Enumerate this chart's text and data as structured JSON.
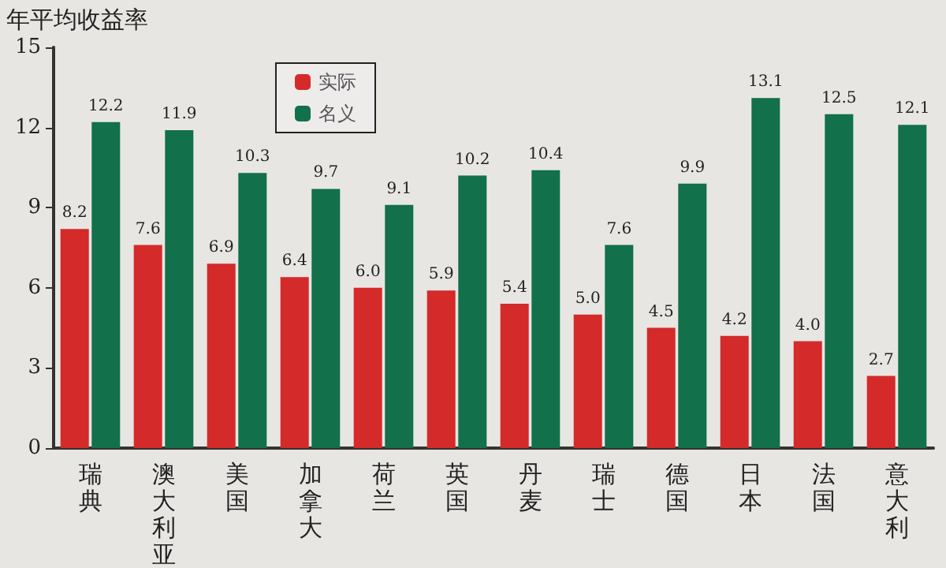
{
  "chart_data": {
    "type": "bar",
    "ylabel": "年平均收益率",
    "categories": [
      "瑞典",
      "澳大利亚",
      "美国",
      "加拿大",
      "荷兰",
      "英国",
      "丹麦",
      "瑞士",
      "德国",
      "日本",
      "法国",
      "意大利"
    ],
    "series": [
      {
        "name": "实际",
        "color": "#d42a2a",
        "values": [
          8.2,
          7.6,
          6.9,
          6.4,
          6.0,
          5.9,
          5.4,
          5.0,
          4.5,
          4.2,
          4.0,
          2.7
        ],
        "value_labels": [
          "8.2",
          "7.6",
          "6.9",
          "6.4",
          "6.0",
          "5.9",
          "5.4",
          "5.0",
          "4.5",
          "4.2",
          "4.0",
          "2.7"
        ]
      },
      {
        "name": "名义",
        "color": "#12704a",
        "values": [
          12.2,
          11.9,
          10.3,
          9.7,
          9.1,
          10.2,
          10.4,
          7.6,
          9.9,
          13.1,
          12.5,
          12.1
        ],
        "value_labels": [
          "12.2",
          "11.9",
          "10.3",
          "9.7",
          "9.1",
          "10.2",
          "10.4",
          "7.6",
          "9.9",
          "13.1",
          "12.5",
          "12.1"
        ]
      }
    ],
    "ylim": [
      0,
      15
    ],
    "yticks": [
      0,
      3,
      6,
      9,
      12,
      15
    ],
    "legend": "top left",
    "grid": false
  }
}
